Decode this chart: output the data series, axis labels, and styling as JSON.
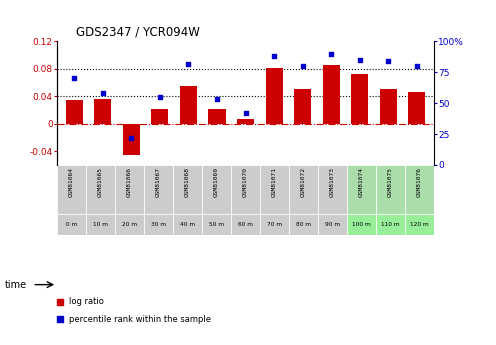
{
  "title": "GDS2347 / YCR094W",
  "samples": [
    "GSM81064",
    "GSM81065",
    "GSM81066",
    "GSM81067",
    "GSM81068",
    "GSM81069",
    "GSM81070",
    "GSM81071",
    "GSM81072",
    "GSM81073",
    "GSM81074",
    "GSM81075",
    "GSM81076"
  ],
  "time_labels": [
    "0 m",
    "10 m",
    "20 m",
    "30 m",
    "40 m",
    "50 m",
    "60 m",
    "70 m",
    "80 m",
    "90 m",
    "100 m",
    "110 m",
    "120 m"
  ],
  "log_ratio": [
    0.035,
    0.036,
    -0.046,
    0.022,
    0.055,
    0.022,
    0.007,
    0.081,
    0.05,
    0.086,
    0.073,
    0.05,
    0.046
  ],
  "percentile": [
    70,
    58,
    22,
    55,
    82,
    53,
    42,
    88,
    80,
    90,
    85,
    84,
    80
  ],
  "bar_color": "#cc0000",
  "dot_color": "#0000cc",
  "left_ylim": [
    -0.06,
    0.12
  ],
  "right_ylim": [
    0,
    100
  ],
  "left_yticks": [
    -0.04,
    0.0,
    0.04,
    0.08,
    0.12
  ],
  "right_yticks": [
    0,
    25,
    50,
    75,
    100
  ],
  "left_ytick_labels": [
    "-0.04",
    "0",
    "0.04",
    "0.08",
    "0.12"
  ],
  "right_ytick_labels": [
    "0",
    "25",
    "50",
    "75",
    "100%"
  ],
  "dotted_lines": [
    0.04,
    0.08
  ],
  "zero_line_color": "#cc0000",
  "time_row_bg_colors": [
    "#cccccc",
    "#cccccc",
    "#cccccc",
    "#cccccc",
    "#cccccc",
    "#cccccc",
    "#cccccc",
    "#cccccc",
    "#cccccc",
    "#cccccc",
    "#99ee99",
    "#99ee99",
    "#99ee99"
  ],
  "sample_row_bg_colors": [
    "#cccccc",
    "#cccccc",
    "#cccccc",
    "#cccccc",
    "#cccccc",
    "#cccccc",
    "#cccccc",
    "#cccccc",
    "#cccccc",
    "#cccccc",
    "#aaddaa",
    "#aaddaa",
    "#aaddaa"
  ]
}
